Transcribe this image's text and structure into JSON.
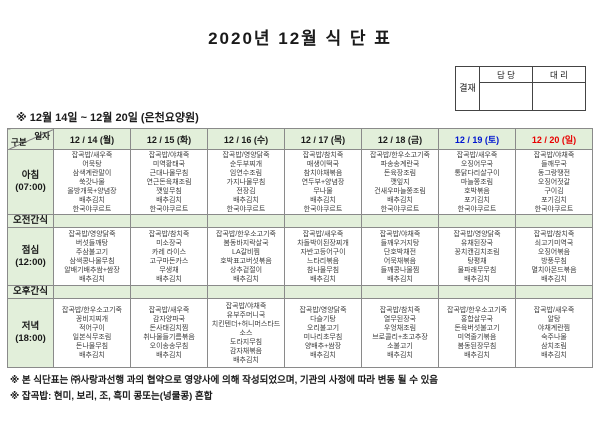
{
  "title": "2020년 12월 식 단 표",
  "approval": {
    "stamp": "결재",
    "col1": "담 당",
    "col2": "대 리"
  },
  "subtitle": "※ 12월 14일 ~ 12월 20일 (은천요양원)",
  "colors": {
    "header_bg": "#e2efda",
    "weekday": "#1a1a1a",
    "saturday": "#0016d0",
    "sunday": "#e80000",
    "border": "#8a8a8a"
  },
  "table": {
    "corner_top": "일자",
    "corner_bottom": "구분",
    "days": [
      {
        "label": "12 / 14 (월)",
        "color": "#1a1a1a"
      },
      {
        "label": "12 / 15 (화)",
        "color": "#1a1a1a"
      },
      {
        "label": "12 / 16 (수)",
        "color": "#1a1a1a"
      },
      {
        "label": "12 / 17 (목)",
        "color": "#1a1a1a"
      },
      {
        "label": "12 / 18 (금)",
        "color": "#1a1a1a"
      },
      {
        "label": "12 / 19 (토)",
        "color": "#0016d0"
      },
      {
        "label": "12 / 20 (일)",
        "color": "#e80000"
      }
    ],
    "rows": [
      {
        "id": "breakfast",
        "label": "아침",
        "time": "(07:00)",
        "type": "meal",
        "menus": [
          [
            "잡곡밥/새우죽",
            "어묵탕",
            "삼색계란말이",
            "쑥갓나물",
            "올방개묵+양념장",
            "배추김치",
            "한국야쿠르트"
          ],
          [
            "잡곡밥/야채죽",
            "미역황태국",
            "근대나물무침",
            "연근돈육채조림",
            "깻잎무침",
            "배추김치",
            "한국야쿠르트"
          ],
          [
            "잡곡밥/영양닭죽",
            "순두부찌개",
            "임연수조림",
            "가지나물무침",
            "전장김",
            "배추김치",
            "한국야쿠르트"
          ],
          [
            "잡곡밥/참치죽",
            "매생이떡국",
            "참치야채볶음",
            "연두부+양념장",
            "무나물",
            "배추김치",
            "한국야쿠르트"
          ],
          [
            "잡곡밥/한우소고기죽",
            "파송송계란국",
            "돈육장조림",
            "깻잎지",
            "건새우마늘쫑조림",
            "배추김치",
            "한국야쿠르트"
          ],
          [
            "잡곡밥/새우죽",
            "오징어무국",
            "통닭다리살구이",
            "마늘쫑조림",
            "호박볶음",
            "포기김치",
            "한국야쿠르트"
          ],
          [
            "잡곡밥/야채죽",
            "들깨무국",
            "동그랑땡전",
            "오징어젓갈",
            "구이김",
            "포기김치",
            "한국야쿠르트"
          ]
        ]
      },
      {
        "id": "morning-snack",
        "label": "오전간식",
        "time": "",
        "type": "snack",
        "menus": [
          [],
          [],
          [],
          [],
          [],
          [],
          []
        ]
      },
      {
        "id": "lunch",
        "label": "점심",
        "time": "(12:00)",
        "type": "meal",
        "menus": [
          [
            "잡곡밥/영양닭죽",
            "버섯들깨탕",
            "주삼불고기",
            "삼색콩나물무침",
            "알배기배추쌈+쌈장",
            "배추김치"
          ],
          [
            "잡곡밥/참치죽",
            "미소장국",
            "카레 라이스",
            "고구마돈카스",
            "무생채",
            "배추김치"
          ],
          [
            "잡곡밥/한우소고기죽",
            "봄동바지락살국",
            "LA갈비찜",
            "호박표고버섯볶음",
            "상추겉절이",
            "배추김치"
          ],
          [
            "잡곡밥/새우죽",
            "차돌박이된장찌개",
            "자반고등어구이",
            "느타리볶음",
            "참나물무침",
            "배추김치"
          ],
          [
            "잡곡밥/야채죽",
            "들깨우거지탕",
            "단호박채전",
            "어묵채볶음",
            "들깨콩나물찜",
            "배추김치"
          ],
          [
            "잡곡밥/영양닭죽",
            "유채된장국",
            "꽁치캔김치조림",
            "탕평채",
            "물파래무무침",
            "배추김치"
          ],
          [
            "잡곡밥/참치죽",
            "쇠고기미역국",
            "오징어볶음",
            "방풍무침",
            "멸치아몬드볶음",
            "배추김치"
          ]
        ]
      },
      {
        "id": "afternoon-snack",
        "label": "오후간식",
        "time": "",
        "type": "snack",
        "menus": [
          [],
          [],
          [],
          [],
          [],
          [],
          []
        ]
      },
      {
        "id": "dinner",
        "label": "저녁",
        "time": "(18:00)",
        "type": "meal",
        "menus": [
          [
            "잡곡밥/한우소고기죽",
            "꽁비지찌개",
            "적어구이",
            "일본식무조림",
            "돈나물무침",
            "배추김치"
          ],
          [
            "잡곡밥/새우죽",
            "감자양파국",
            "돈사태김치찜",
            "취나물들기름볶음",
            "오이송송무침",
            "배추김치"
          ],
          [
            "잡곡밥/야채죽",
            "유부주머니국",
            "치킨텐더+허니머스타드",
            "소스",
            "도라지무침",
            "감자채볶음",
            "배추김치"
          ],
          [
            "잡곡밥/영양닭죽",
            "다슬기탕",
            "오리불고기",
            "미나리초무침",
            "양배추+쌈장",
            "배추김치"
          ],
          [
            "잡곡밥/참치죽",
            "열무된장국",
            "우엉채조림",
            "브로콜리+초고추장",
            "소불고기",
            "배추김치"
          ],
          [
            "잡곡밥/한우소고기죽",
            "홍합살무국",
            "돈육버섯불고기",
            "미역줄기볶음",
            "봄동된장무침",
            "배추김치"
          ],
          [
            "잡곡밥/새우죽",
            "알탕",
            "야채계란찜",
            "숙주나물",
            "삼치조림",
            "배추김치"
          ]
        ]
      }
    ]
  },
  "footnotes": [
    "※ 본 식단표는 ㈜사랑과선행 과의 협약으로 영양사에 의해 작성되었으며, 기관의 사정에 따라 변동 될 수 있음",
    "※ 잡곡밥: 현미, 보리, 조, 흑미 콩또는(넝쿨콩) 혼합"
  ]
}
